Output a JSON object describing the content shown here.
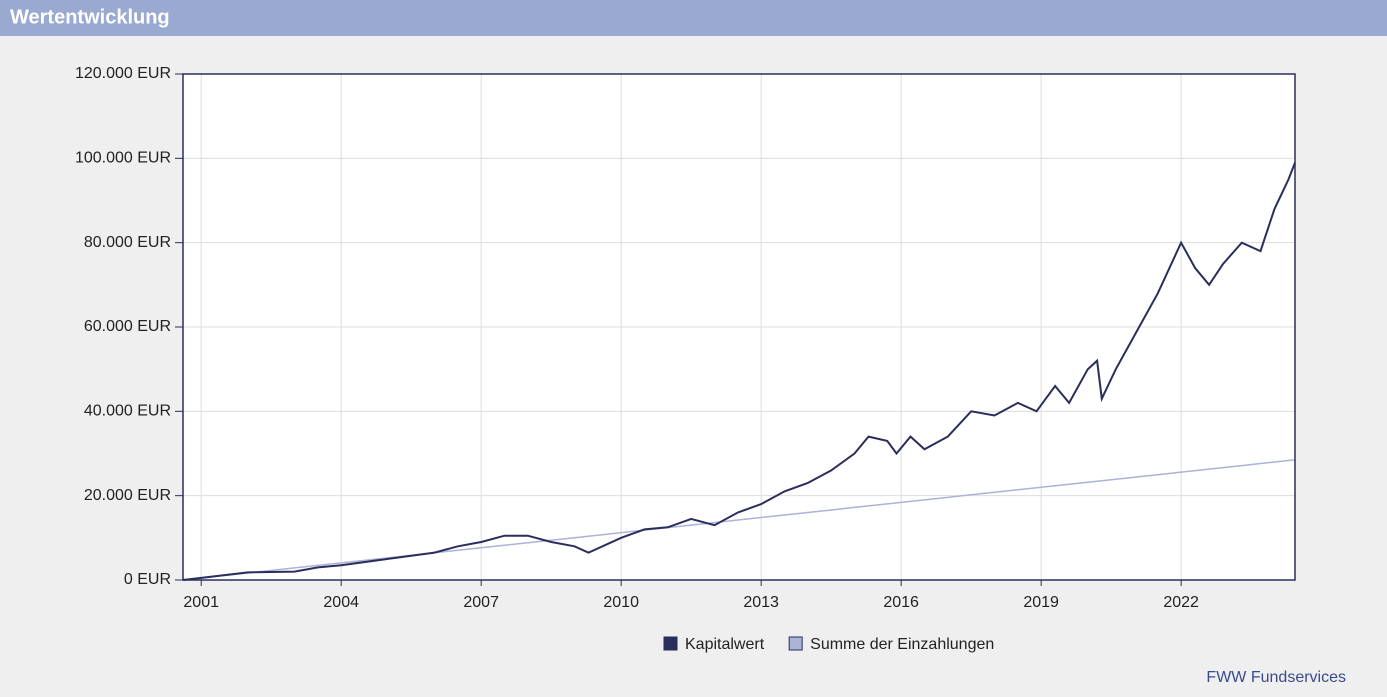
{
  "chart_data": {
    "type": "line",
    "title": "Wertentwicklung",
    "source": "FWW Fundservices",
    "x": [
      2000.61,
      2001,
      2002,
      2003,
      2003.5,
      2004,
      2005,
      2006,
      2006.5,
      2007,
      2007.5,
      2008,
      2008.5,
      2009,
      2009.3,
      2010,
      2010.5,
      2011,
      2011.5,
      2012,
      2012.5,
      2013,
      2013.5,
      2014,
      2014.5,
      2015,
      2015.3,
      2015.7,
      2015.9,
      2016.2,
      2016.5,
      2017,
      2017.5,
      2018,
      2018.5,
      2018.9,
      2019.3,
      2019.6,
      2020,
      2020.2,
      2020.3,
      2020.6,
      2021,
      2021.5,
      2022,
      2022.3,
      2022.6,
      2022.9,
      2023.3,
      2023.7,
      2024,
      2024.3,
      2024.44
    ],
    "series": [
      {
        "name": "Kapitalwert",
        "color": "#2b2d5c",
        "values": [
          0,
          500,
          1800,
          2000,
          3000,
          3500,
          5000,
          6500,
          8000,
          9000,
          10500,
          10500,
          9000,
          8000,
          6500,
          10000,
          12000,
          12500,
          14500,
          13000,
          16000,
          18000,
          21000,
          23000,
          26000,
          30000,
          34000,
          33000,
          30000,
          34000,
          31000,
          34000,
          40000,
          39000,
          42000,
          40000,
          46000,
          42000,
          50000,
          52000,
          43000,
          50000,
          58000,
          68000,
          80000,
          74000,
          70000,
          75000,
          80000,
          78000,
          88000,
          95000,
          99000
        ]
      },
      {
        "name": "Summe der Einzahlungen",
        "color": "#a9b4d6",
        "values": [
          0,
          470,
          1660,
          2860,
          3460,
          4050,
          5250,
          6450,
          7040,
          7640,
          8240,
          8840,
          9440,
          10030,
          10390,
          11230,
          11830,
          12430,
          13020,
          13620,
          14220,
          14820,
          15420,
          16010,
          16610,
          17210,
          17570,
          18050,
          18290,
          18640,
          19000,
          19600,
          20200,
          20800,
          21400,
          21870,
          22350,
          22710,
          23190,
          23430,
          23550,
          23910,
          24390,
          24980,
          25580,
          25940,
          26300,
          26660,
          27140,
          27620,
          27980,
          28330,
          28500
        ]
      }
    ],
    "xlim": [
      2000.61,
      2024.44
    ],
    "xticks": [
      2001,
      2004,
      2007,
      2010,
      2013,
      2016,
      2019,
      2022
    ],
    "ylim": [
      0,
      120000
    ],
    "yticks": [
      {
        "value": 0,
        "label": "0 EUR"
      },
      {
        "value": 20000,
        "label": "20.000 EUR"
      },
      {
        "value": 40000,
        "label": "40.000 EUR"
      },
      {
        "value": 60000,
        "label": "60.000 EUR"
      },
      {
        "value": 80000,
        "label": "80.000 EUR"
      },
      {
        "value": 100000,
        "label": "100.000 EUR"
      },
      {
        "value": 120000,
        "label": "120.000 EUR"
      }
    ],
    "grid": true
  }
}
